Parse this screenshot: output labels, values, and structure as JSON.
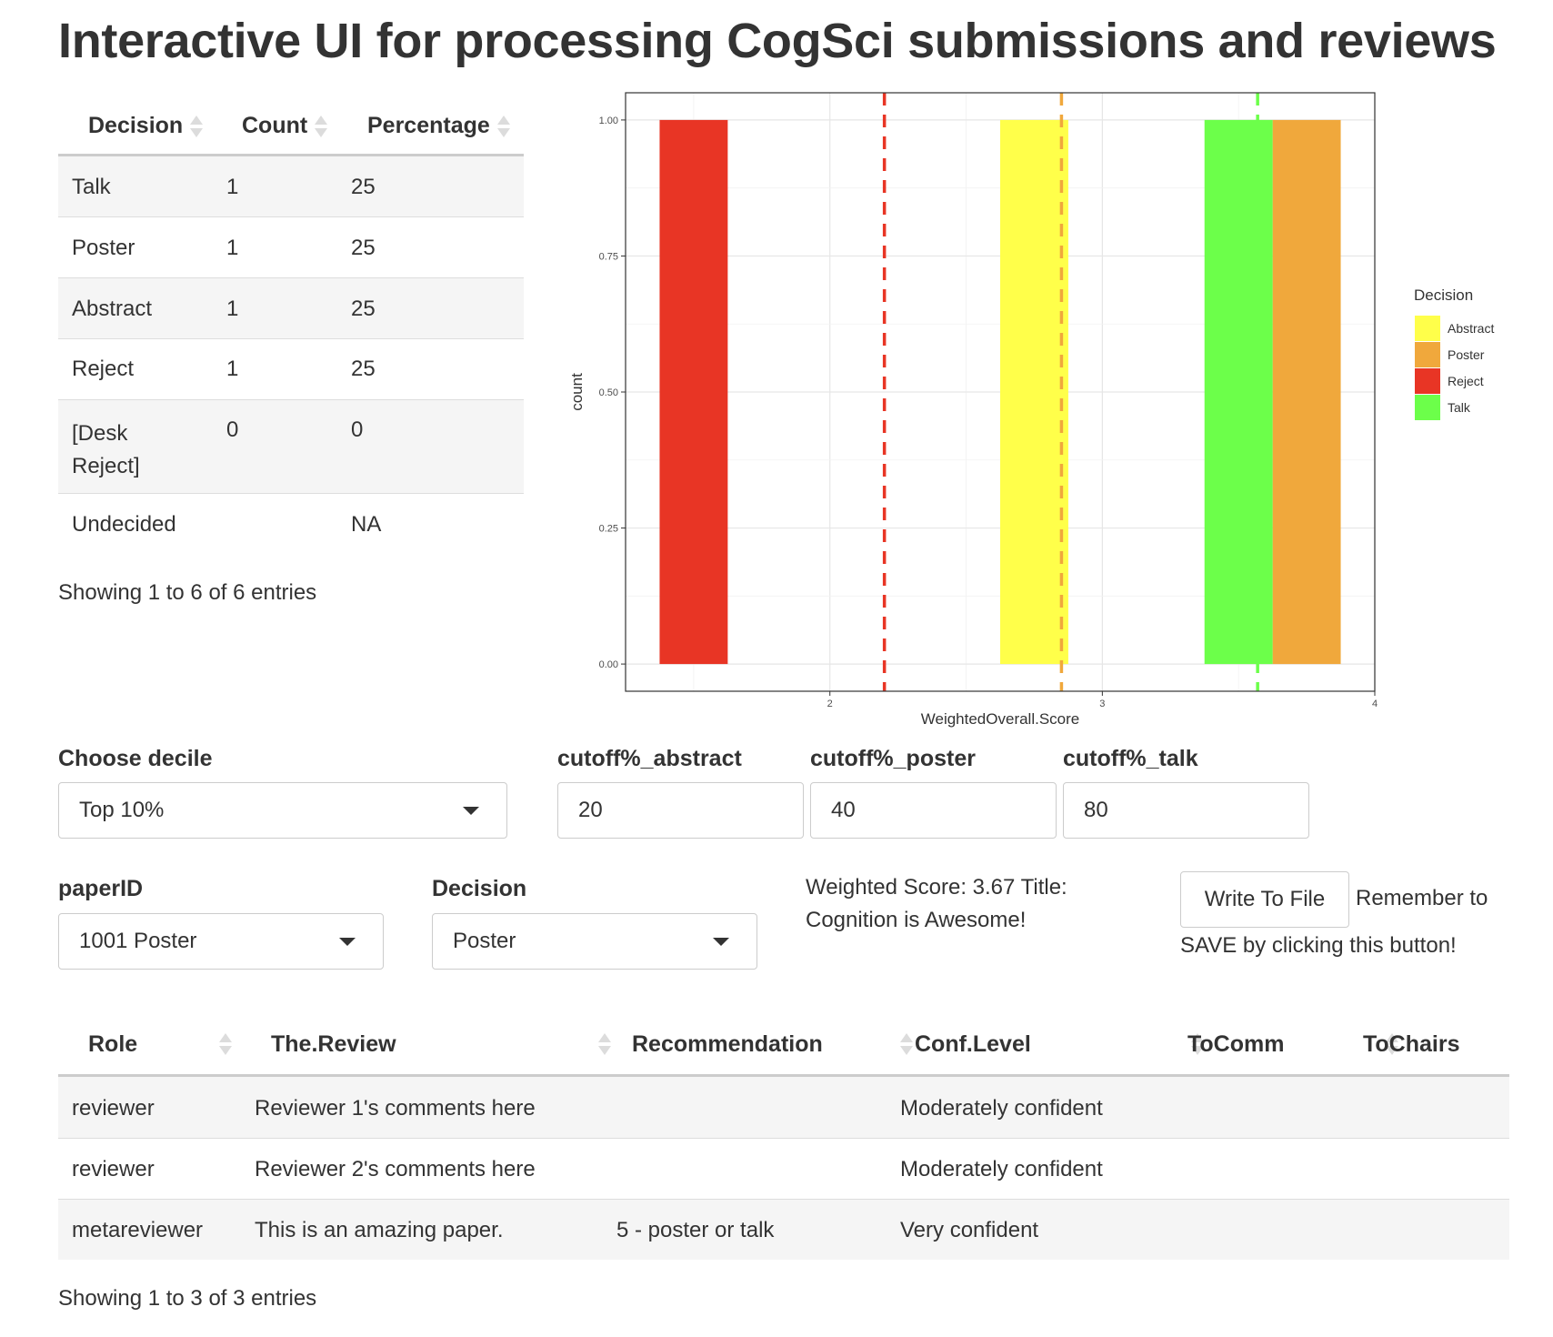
{
  "page": {
    "title": "Interactive UI for processing CogSci submissions and reviews"
  },
  "summary_table": {
    "headers": [
      "Decision",
      "Count",
      "Percentage"
    ],
    "rows": [
      [
        "Talk",
        "1",
        "25"
      ],
      [
        "Poster",
        "1",
        "25"
      ],
      [
        "Abstract",
        "1",
        "25"
      ],
      [
        "Reject",
        "1",
        "25"
      ],
      [
        "[Desk Reject]",
        "0",
        "0"
      ],
      [
        "Undecided",
        "",
        "NA"
      ]
    ],
    "info": "Showing 1 to 6 of 6 entries"
  },
  "chart_data": {
    "type": "bar",
    "title": "",
    "xlabel": "WeightedOverall.Score",
    "ylabel": "count",
    "xlim": [
      1.25,
      4.0
    ],
    "ylim": [
      -0.05,
      1.05
    ],
    "x_ticks": [
      "2",
      "3",
      "4"
    ],
    "y_ticks": [
      "0.00",
      "0.25",
      "0.50",
      "0.75",
      "1.00"
    ],
    "bin_width": 0.25,
    "series": [
      {
        "name": "Abstract",
        "color": "#FFFF4A",
        "values": [
          {
            "x": 2.75,
            "count": 1
          }
        ]
      },
      {
        "name": "Poster",
        "color": "#F0A83C",
        "values": [
          {
            "x": 3.75,
            "count": 1
          }
        ]
      },
      {
        "name": "Reject",
        "color": "#E83525",
        "values": [
          {
            "x": 1.5,
            "count": 1
          }
        ]
      },
      {
        "name": "Talk",
        "color": "#6CFF4A",
        "values": [
          {
            "x": 3.5,
            "count": 1
          }
        ]
      }
    ],
    "cutoff_lines": [
      {
        "x": 2.2,
        "color": "#E83525"
      },
      {
        "x": 2.85,
        "color": "#F0A83C"
      },
      {
        "x": 3.57,
        "color": "#6CFF4A"
      }
    ],
    "legend_title": "Decision",
    "legend_position": "right",
    "grid": true
  },
  "controls": {
    "decile": {
      "label": "Choose decile",
      "value": "Top 10%"
    },
    "cutoff_abstract": {
      "label": "cutoff%_abstract",
      "value": "20"
    },
    "cutoff_poster": {
      "label": "cutoff%_poster",
      "value": "40"
    },
    "cutoff_talk": {
      "label": "cutoff%_talk",
      "value": "80"
    },
    "paperID": {
      "label": "paperID",
      "value": "1001 Poster"
    },
    "decision": {
      "label": "Decision",
      "value": "Poster"
    },
    "score_line1": "Weighted Score: 3.67 Title:",
    "score_line2": "Cognition is Awesome!",
    "write_button": "Write To File",
    "reminder_line1": "Remember to",
    "reminder_line2": "SAVE by clicking this button!"
  },
  "review_table": {
    "headers": [
      "Role",
      "The.Review",
      "Recommendation",
      "Conf.Level",
      "ToComm",
      "ToChairs"
    ],
    "rows": [
      [
        "reviewer",
        "Reviewer 1's comments here",
        "",
        "Moderately confident",
        "",
        ""
      ],
      [
        "reviewer",
        "Reviewer 2's comments here",
        "",
        "Moderately confident",
        "",
        ""
      ],
      [
        "metareviewer",
        "This is an amazing paper.",
        "5 - poster or talk",
        "Very confident",
        "",
        ""
      ]
    ],
    "info": "Showing 1 to 3 of 3 entries"
  }
}
